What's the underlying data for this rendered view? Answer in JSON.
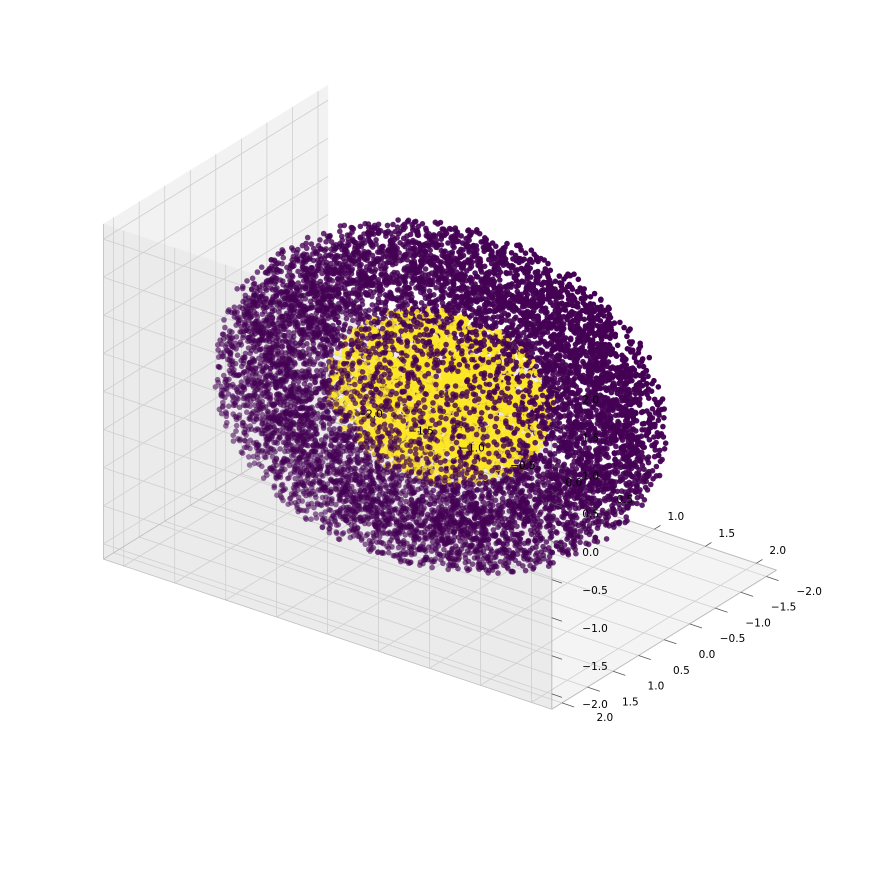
{
  "chart_data": {
    "type": "scatter",
    "projection": "3d",
    "title": "",
    "xlabel": "",
    "ylabel": "",
    "zlabel": "",
    "xlim": [
      -2.2,
      2.2
    ],
    "ylim": [
      -2.2,
      2.2
    ],
    "zlim": [
      -2.2,
      2.2
    ],
    "grid": true,
    "legend": "none",
    "x_ticks": [
      "−2.0",
      "−1.5",
      "−1.0",
      "−0.5",
      "0.0",
      "0.5",
      "1.0",
      "1.5",
      "2.0"
    ],
    "y_ticks": [
      "−2.0",
      "−1.5",
      "−1.0",
      "−0.5",
      "0.0",
      "0.5",
      "1.0",
      "1.5",
      "2.0"
    ],
    "z_ticks": [
      "−2.0",
      "−1.5",
      "−1.0",
      "−0.5",
      "0.0",
      "0.5",
      "1.0",
      "1.5",
      "2.0"
    ],
    "series": [
      {
        "color": "#440154",
        "description_of_shape": "spherical shell",
        "radius_range": [
          1.3,
          2.0
        ],
        "approx_points": 9000
      },
      {
        "color": "#fde725",
        "description_of_shape": "solid sphere",
        "radius_range": [
          0.0,
          1.0
        ],
        "approx_points": 3000
      }
    ],
    "colors": {
      "pane_left": "#f2f2f2",
      "pane_right": "#ebebeb",
      "pane_floor": "#f4f4f4",
      "grid": "#cfcfcf",
      "edge": "#bdbdbd"
    }
  }
}
